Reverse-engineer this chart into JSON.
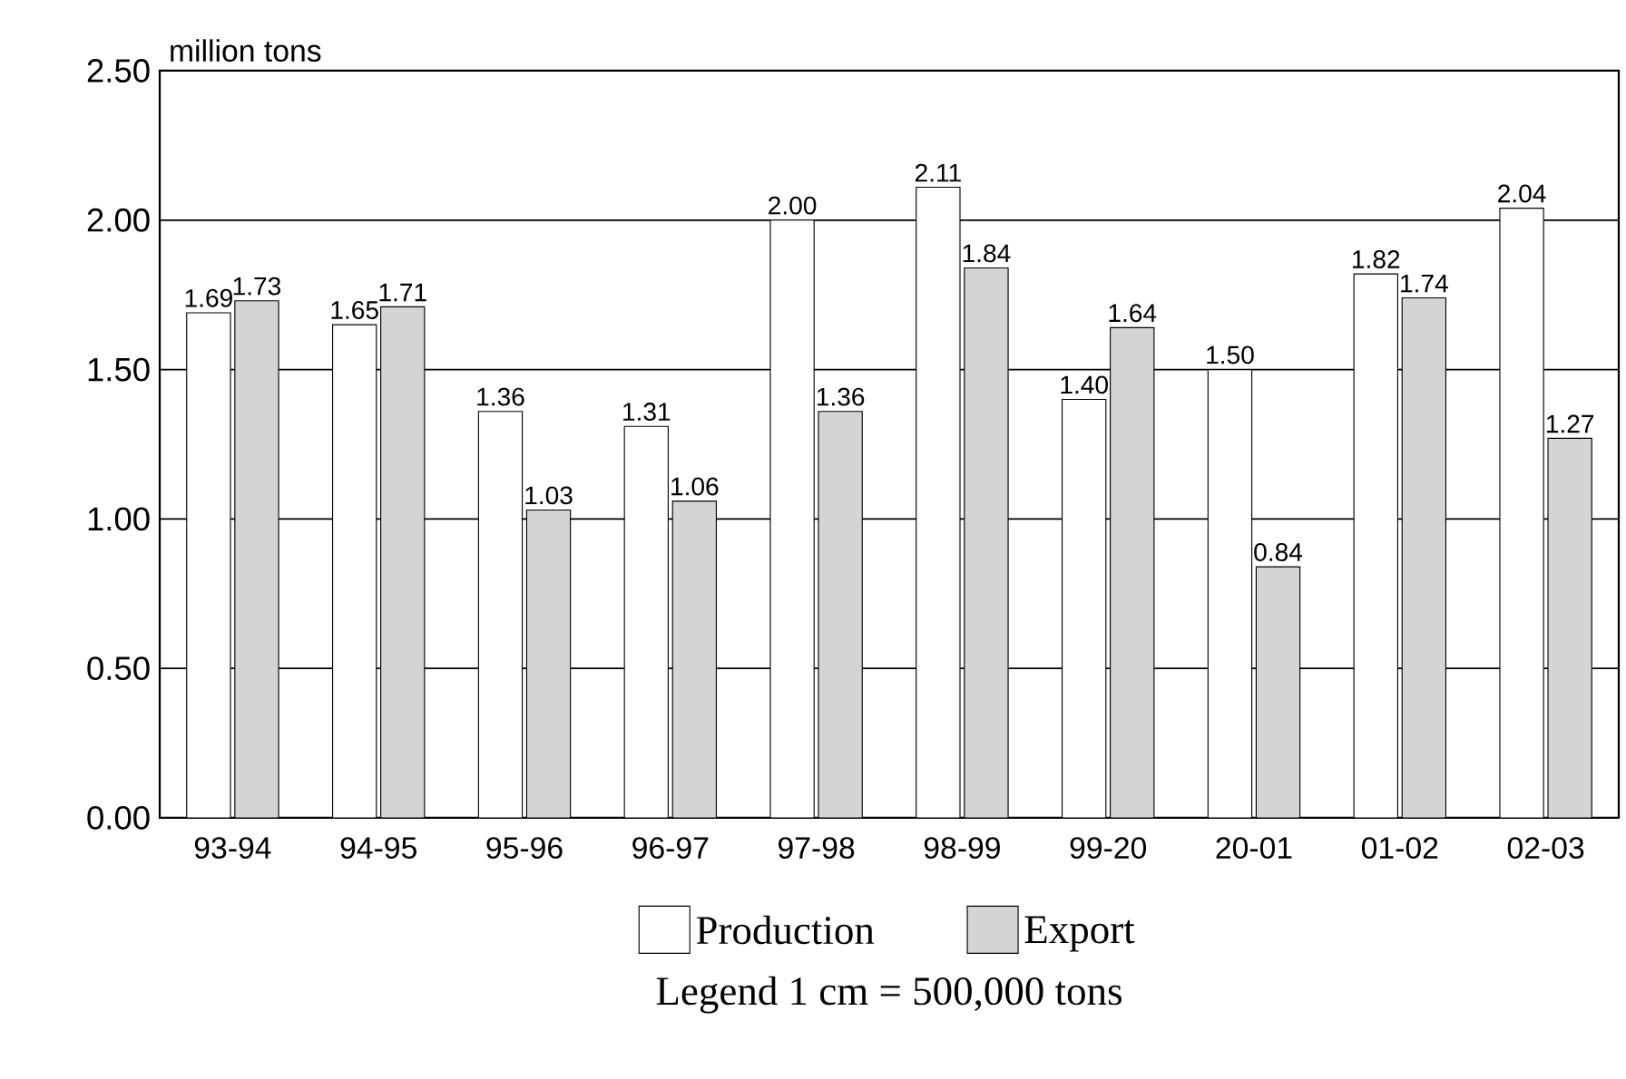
{
  "chart_data": {
    "type": "bar",
    "ylabel": "million tons",
    "categories": [
      "93-94",
      "94-95",
      "95-96",
      "96-97",
      "97-98",
      "98-99",
      "99-20",
      "20-01",
      "01-02",
      "02-03"
    ],
    "series": [
      {
        "name": "Production",
        "color": "#ffffff",
        "values": [
          1.69,
          1.65,
          1.36,
          1.31,
          2.0,
          2.11,
          1.4,
          1.5,
          1.82,
          2.04
        ],
        "value_labels": [
          "1.69",
          "1.65",
          "1.36",
          "1.31",
          "2.00",
          "2.11",
          "1.40",
          "1.50",
          "1.82",
          "2.04"
        ]
      },
      {
        "name": "Export",
        "color": "#d4d4d4",
        "values": [
          1.73,
          1.71,
          1.03,
          1.06,
          1.36,
          1.84,
          1.64,
          0.84,
          1.74,
          1.27
        ],
        "value_labels": [
          "1.73",
          "1.71",
          "1.03",
          "1.06",
          "1.36",
          "1.84",
          "1.64",
          "0.84",
          "1.74",
          "1.27"
        ]
      }
    ],
    "ylim": [
      0,
      2.5
    ],
    "yticks": [
      {
        "value": 0,
        "label": "0.00"
      },
      {
        "value": 0.5,
        "label": "0.50"
      },
      {
        "value": 1,
        "label": "1.00"
      },
      {
        "value": 1.5,
        "label": "1.50"
      },
      {
        "value": 2,
        "label": "2.00"
      },
      {
        "value": 2.5,
        "label": "2.50"
      }
    ],
    "grid": "y",
    "legend": "bottom",
    "annotations": [
      "Legend 1 cm = 500,000 tons"
    ]
  }
}
